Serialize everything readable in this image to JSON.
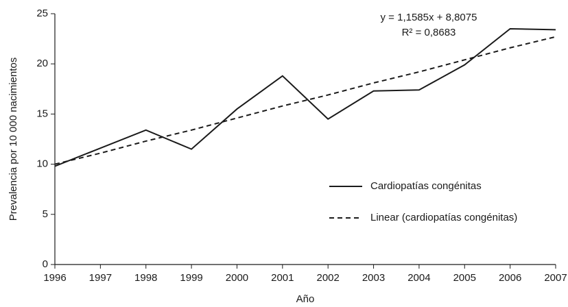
{
  "chart_data": {
    "type": "line",
    "y_label": "Prevalencia por 10 000 nacimientos",
    "x_label": "Año",
    "x": [
      1996,
      1997,
      1998,
      1999,
      2000,
      2001,
      2002,
      2003,
      2004,
      2005,
      2006,
      2007
    ],
    "xlim": [
      1996,
      2007
    ],
    "xticks": [
      1996,
      1997,
      1998,
      1999,
      2000,
      2001,
      2002,
      2003,
      2004,
      2005,
      2006,
      2007
    ],
    "ylim": [
      0,
      25
    ],
    "yticks": [
      0,
      5,
      10,
      15,
      20,
      25
    ],
    "series": [
      {
        "name": "Cardiopatías congénitas",
        "color": "#1a1a1a",
        "linestyle": "solid",
        "values": [
          9.8,
          11.6,
          13.4,
          11.5,
          15.5,
          18.8,
          14.5,
          17.3,
          17.4,
          19.9,
          23.5,
          23.4
        ]
      },
      {
        "name": "Linear (cardiopatías congénitas)",
        "color": "#1a1a1a",
        "linestyle": "dashed",
        "values": [
          10.0,
          11.1,
          12.3,
          13.4,
          14.6,
          15.8,
          16.9,
          18.1,
          19.2,
          20.4,
          21.6,
          22.7
        ]
      }
    ],
    "annotations": [
      "y = 1,1585x + 8,8075",
      "R² = 0,8683"
    ]
  }
}
